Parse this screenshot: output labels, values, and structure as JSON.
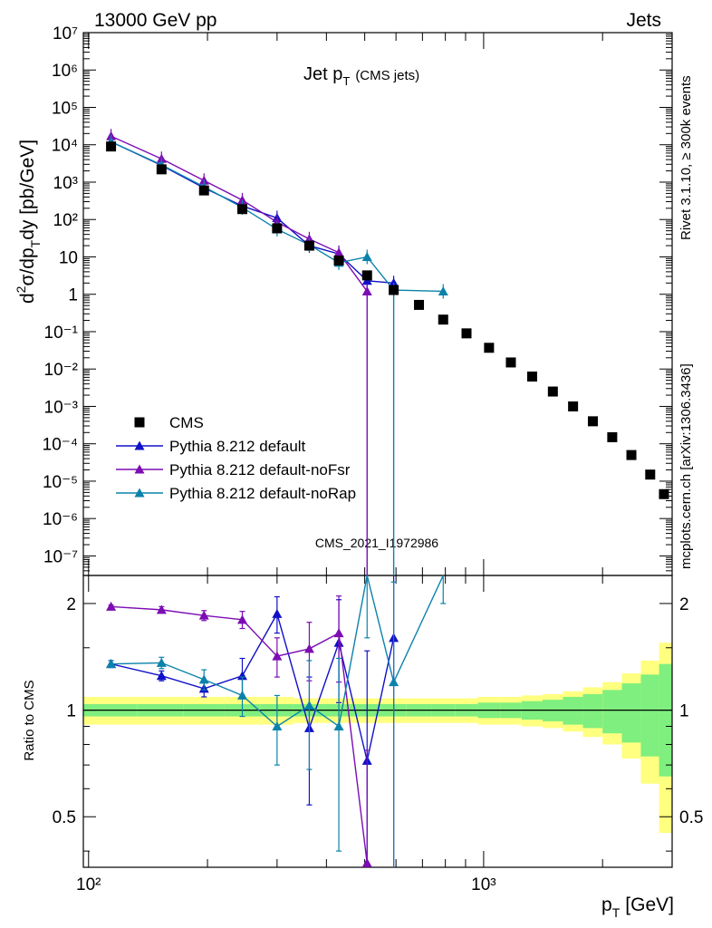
{
  "header": {
    "left": "13000 GeV pp",
    "right": "Jets",
    "side_top": "Rivet 3.1.10, ≥ 300k events",
    "side_bottom": "mcplots.cern.ch [arXiv:1306.3436]",
    "watermark": "CMS_2021_I1972986"
  },
  "main_plot": {
    "title": "Jet p",
    "title_sub": "T",
    "title_suffix": "(CMS jets)",
    "ylabel_parts": [
      "d",
      "2",
      "σ/dp",
      "T",
      "dy [pb/GeV]"
    ],
    "ytick_labels": [
      "10⁻⁷",
      "10⁻⁶",
      "10⁻⁵",
      "10⁻⁴",
      "10⁻³",
      "10⁻²",
      "10⁻¹",
      "1",
      "10",
      "10²",
      "10³",
      "10⁴",
      "10⁵",
      "10⁶",
      "10⁷"
    ]
  },
  "ratio_plot": {
    "ylabel": "Ratio to CMS",
    "ytick_labels": [
      "0.5",
      "1",
      "2"
    ]
  },
  "x_axis": {
    "label": "p",
    "label_sub": "T",
    "label_unit": "[GeV]",
    "tick_labels": [
      "10²",
      "10³"
    ]
  },
  "legend": {
    "position": "lower-left",
    "entries": [
      "CMS",
      "Pythia 8.212 default",
      "Pythia 8.212 default-noFsr",
      "Pythia 8.212 default-noRap"
    ]
  },
  "chart_data": {
    "type": "scatter",
    "x_scale": "log",
    "y_scale": "log",
    "xlim": [
      97,
      3000
    ],
    "ylim": [
      3e-08,
      10000000.0
    ],
    "ratio_ylim": [
      0.36,
      2.4
    ],
    "colors": {
      "CMS": "#000000",
      "default": "#1010c8",
      "noFsr": "#7c0cb4",
      "noRap": "#0a82aa",
      "band_inner": "#7fef7f",
      "band_outer": "#ffff80"
    },
    "series": [
      {
        "name": "CMS",
        "x": [
          114,
          153,
          196,
          245,
          300,
          362,
          430,
          507,
          592,
          686,
          790,
          905,
          1032,
          1172,
          1327,
          1497,
          1684,
          1890,
          2116,
          2366,
          2640,
          2860
        ],
        "y": [
          9000,
          2200,
          600,
          190,
          58,
          20,
          8,
          3.2,
          1.3,
          0.52,
          0.21,
          0.09,
          0.037,
          0.015,
          0.0063,
          0.0025,
          0.001,
          0.0004,
          0.00015,
          5e-05,
          1.5e-05,
          4.5e-06
        ]
      },
      {
        "name": "Pythia 8.212 default",
        "x": [
          114,
          153,
          196,
          245,
          300,
          362,
          430,
          507,
          592
        ],
        "y": [
          12000,
          2800,
          700,
          230,
          110,
          20,
          12,
          2.3,
          2.0
        ],
        "ratio": [
          1.35,
          1.25,
          1.15,
          1.25,
          1.87,
          0.89,
          1.55,
          0.72,
          1.6
        ],
        "ratio_err": [
          0.03,
          0.04,
          0.06,
          0.15,
          0.22,
          0.35,
          0.5,
          0.75,
          1.3
        ]
      },
      {
        "name": "Pythia 8.212 default-noFsr",
        "x": [
          114,
          153,
          196,
          245,
          300,
          362,
          430,
          507
        ],
        "y": [
          17000,
          4200,
          1100,
          330,
          85,
          30,
          13,
          1.2
        ],
        "ratio": [
          1.96,
          1.92,
          1.85,
          1.8,
          1.42,
          1.49,
          1.65,
          0.37
        ],
        "ratio_err": [
          0.02,
          0.04,
          0.06,
          0.1,
          0.18,
          0.28,
          0.45,
          0.4
        ]
      },
      {
        "name": "Pythia 8.212 default-noRap",
        "x": [
          114,
          153,
          196,
          245,
          300,
          362,
          430,
          507,
          592,
          790
        ],
        "y": [
          12000,
          2900,
          750,
          210,
          55,
          21,
          7,
          10,
          1.3,
          1.2
        ],
        "ratio": [
          1.35,
          1.36,
          1.22,
          1.1,
          0.9,
          1.03,
          0.9,
          3.1,
          1.2,
          5.0
        ],
        "ratio_err": [
          0.03,
          0.05,
          0.08,
          0.14,
          0.2,
          0.35,
          0.5,
          1.5,
          1.1,
          3.0
        ]
      }
    ],
    "uncertainty_band": {
      "edges": [
        97,
        133,
        174,
        220,
        272,
        330,
        395,
        468,
        548,
        638,
        737,
        846,
        967,
        1101,
        1248,
        1410,
        1588,
        1784,
        2000,
        2238,
        2500,
        2780,
        3000
      ],
      "inner": [
        0.04,
        0.04,
        0.04,
        0.04,
        0.04,
        0.04,
        0.04,
        0.04,
        0.04,
        0.04,
        0.04,
        0.04,
        0.05,
        0.05,
        0.06,
        0.07,
        0.09,
        0.11,
        0.14,
        0.19,
        0.26,
        0.35
      ],
      "outer": [
        0.09,
        0.09,
        0.09,
        0.09,
        0.09,
        0.08,
        0.08,
        0.08,
        0.08,
        0.08,
        0.08,
        0.08,
        0.09,
        0.09,
        0.1,
        0.11,
        0.13,
        0.16,
        0.2,
        0.27,
        0.38,
        0.55
      ]
    }
  }
}
